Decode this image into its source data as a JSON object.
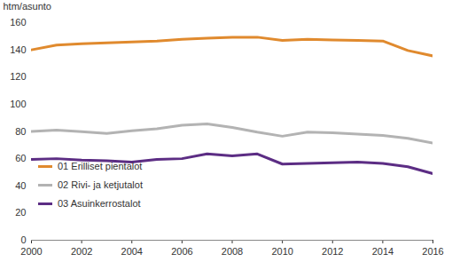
{
  "chart_data": {
    "type": "line",
    "y_label": "htm/asunto",
    "x": [
      2000,
      2001,
      2002,
      2003,
      2004,
      2005,
      2006,
      2007,
      2008,
      2009,
      2010,
      2011,
      2012,
      2013,
      2014,
      2015,
      2016
    ],
    "series": [
      {
        "name": "01 Erilliset pientalot",
        "color": "#e08a2e",
        "values": [
          140,
          143.5,
          144.5,
          145.2,
          145.8,
          146.5,
          147.8,
          148.5,
          149.3,
          149.3,
          147,
          147.8,
          147.3,
          147,
          146.5,
          139.5,
          135.5
        ]
      },
      {
        "name": "02 Rivi- ja ketjutalot",
        "color": "#b3b3b3",
        "values": [
          80,
          81,
          79.8,
          78.5,
          80.5,
          82,
          84.5,
          85.5,
          83,
          79.5,
          76.5,
          79.5,
          79,
          78,
          77,
          75,
          71.5
        ]
      },
      {
        "name": "03 Asuinkerrostalot",
        "color": "#5c2d84",
        "values": [
          59.5,
          60,
          59,
          58.5,
          57.5,
          59.5,
          60,
          63.5,
          62,
          63.5,
          56,
          56.5,
          57,
          57.5,
          56.5,
          54,
          49
        ]
      }
    ],
    "xlim": [
      2000,
      2016
    ],
    "xticks": [
      2000,
      2002,
      2004,
      2006,
      2008,
      2010,
      2012,
      2014,
      2016
    ],
    "ylim": [
      0,
      160
    ],
    "yticks": [
      0,
      20,
      40,
      60,
      80,
      100,
      120,
      140,
      160
    ],
    "grid": false,
    "legend": "lower left"
  }
}
